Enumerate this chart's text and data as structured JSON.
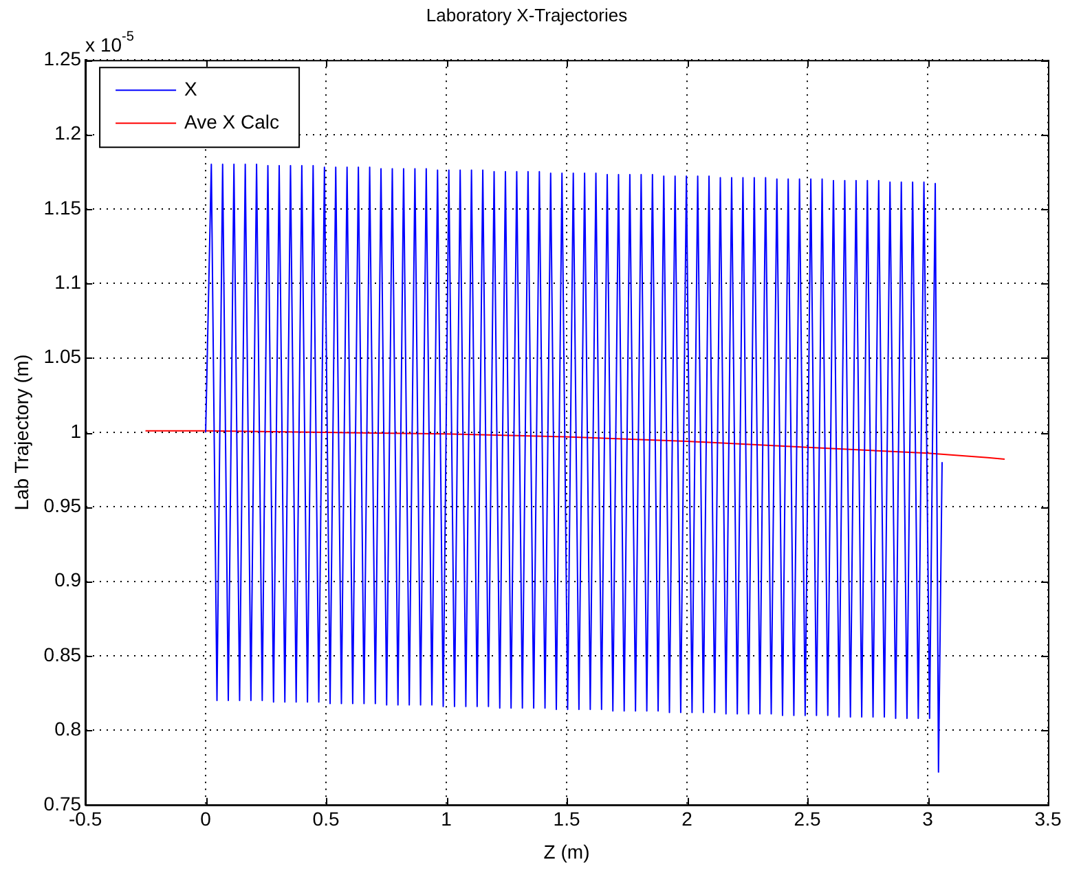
{
  "chart_data": {
    "type": "line",
    "title": "Laboratory X-Trajectories",
    "xlabel": "Z (m)",
    "ylabel": "Lab Trajectory (m)",
    "annotations": [
      "x 10$^{-5}$"
    ],
    "xlim": [
      -0.5,
      3.5
    ],
    "xticks": [
      -0.5,
      0,
      0.5,
      1,
      1.5,
      2,
      2.5,
      3,
      3.5
    ],
    "ylim": [
      0.75,
      1.25
    ],
    "yticks": [
      0.75,
      0.8,
      0.85,
      0.9,
      0.95,
      1,
      1.05,
      1.1,
      1.15,
      1.2,
      1.25
    ],
    "grid": true,
    "legend": "top left",
    "marker": "none",
    "line_style": "solid",
    "series": [
      {
        "name": "X",
        "color": "#0000ff",
        "x": [
          0,
          0.0235,
          0.047,
          0.0705,
          0.094,
          0.1175,
          0.141,
          0.1645,
          0.188,
          0.2115,
          0.235,
          0.2585,
          0.282,
          0.3055,
          0.329,
          0.3525,
          0.376,
          0.3995,
          0.423,
          0.4465,
          0.47,
          0.4935,
          0.517,
          0.5405,
          0.564,
          0.5875,
          0.611,
          0.6345,
          0.658,
          0.6815,
          0.705,
          0.7285,
          0.752,
          0.7755,
          0.799,
          0.8225,
          0.846,
          0.8695,
          0.893,
          0.9165,
          0.94,
          0.9635,
          0.987,
          1.0105,
          1.034,
          1.0575,
          1.081,
          1.1045,
          1.128,
          1.1515,
          1.175,
          1.1985,
          1.222,
          1.2455,
          1.269,
          1.2925,
          1.316,
          1.3395,
          1.363,
          1.3865,
          1.41,
          1.4335,
          1.457,
          1.4805,
          1.504,
          1.5275,
          1.551,
          1.5745,
          1.598,
          1.6215,
          1.645,
          1.6685,
          1.692,
          1.7155,
          1.739,
          1.7625,
          1.786,
          1.8095,
          1.833,
          1.8565,
          1.88,
          1.9035,
          1.927,
          1.9505,
          1.974,
          1.9975,
          2.021,
          2.0445,
          2.068,
          2.0915,
          2.115,
          2.1385,
          2.162,
          2.1855,
          2.209,
          2.2325,
          2.256,
          2.2795,
          2.303,
          2.3265,
          2.35,
          2.3735,
          2.397,
          2.4205,
          2.444,
          2.4675,
          2.491,
          2.5145,
          2.538,
          2.5615,
          2.585,
          2.6085,
          2.632,
          2.6555,
          2.679,
          2.7025,
          2.726,
          2.7495,
          2.773,
          2.7965,
          2.82,
          2.8435,
          2.867,
          2.8905,
          2.914,
          2.9375,
          2.961,
          2.9845,
          3.008,
          3.0315,
          3.045,
          3.06
        ],
        "values": [
          1.0,
          1.18,
          0.82,
          1.18,
          0.82,
          1.18,
          0.82,
          1.18,
          0.82,
          1.18,
          0.82,
          1.179,
          0.819,
          1.179,
          0.819,
          1.179,
          0.819,
          1.179,
          0.819,
          1.179,
          0.819,
          1.178,
          0.818,
          1.178,
          0.818,
          1.178,
          0.818,
          1.178,
          0.818,
          1.178,
          0.818,
          1.177,
          0.817,
          1.177,
          0.817,
          1.177,
          0.817,
          1.177,
          0.817,
          1.177,
          0.817,
          1.176,
          0.816,
          1.176,
          0.816,
          1.176,
          0.816,
          1.176,
          0.816,
          1.176,
          0.816,
          1.175,
          0.815,
          1.175,
          0.815,
          1.175,
          0.815,
          1.175,
          0.815,
          1.175,
          0.815,
          1.174,
          0.814,
          1.174,
          0.814,
          1.174,
          0.814,
          1.174,
          0.814,
          1.174,
          0.814,
          1.173,
          0.813,
          1.173,
          0.813,
          1.173,
          0.813,
          1.173,
          0.813,
          1.173,
          0.813,
          1.172,
          0.812,
          1.172,
          0.812,
          1.172,
          0.812,
          1.172,
          0.812,
          1.172,
          0.812,
          1.171,
          0.811,
          1.171,
          0.811,
          1.171,
          0.811,
          1.171,
          0.811,
          1.171,
          0.811,
          1.17,
          0.81,
          1.17,
          0.81,
          1.17,
          0.81,
          1.17,
          0.81,
          1.17,
          0.81,
          1.169,
          0.809,
          1.169,
          0.809,
          1.169,
          0.809,
          1.169,
          0.809,
          1.169,
          0.809,
          1.168,
          0.808,
          1.168,
          0.808,
          1.168,
          0.808,
          1.168,
          0.808,
          1.167,
          0.772,
          0.98
        ]
      },
      {
        "name": "Ave X Calc",
        "color": "#ff0000",
        "x": [
          -0.25,
          0,
          0.5,
          1,
          1.5,
          2,
          2.5,
          3,
          3.25,
          3.32
        ],
        "values": [
          1.001,
          1.001,
          1.0,
          0.999,
          0.997,
          0.994,
          0.99,
          0.986,
          0.983,
          0.982
        ]
      }
    ]
  }
}
